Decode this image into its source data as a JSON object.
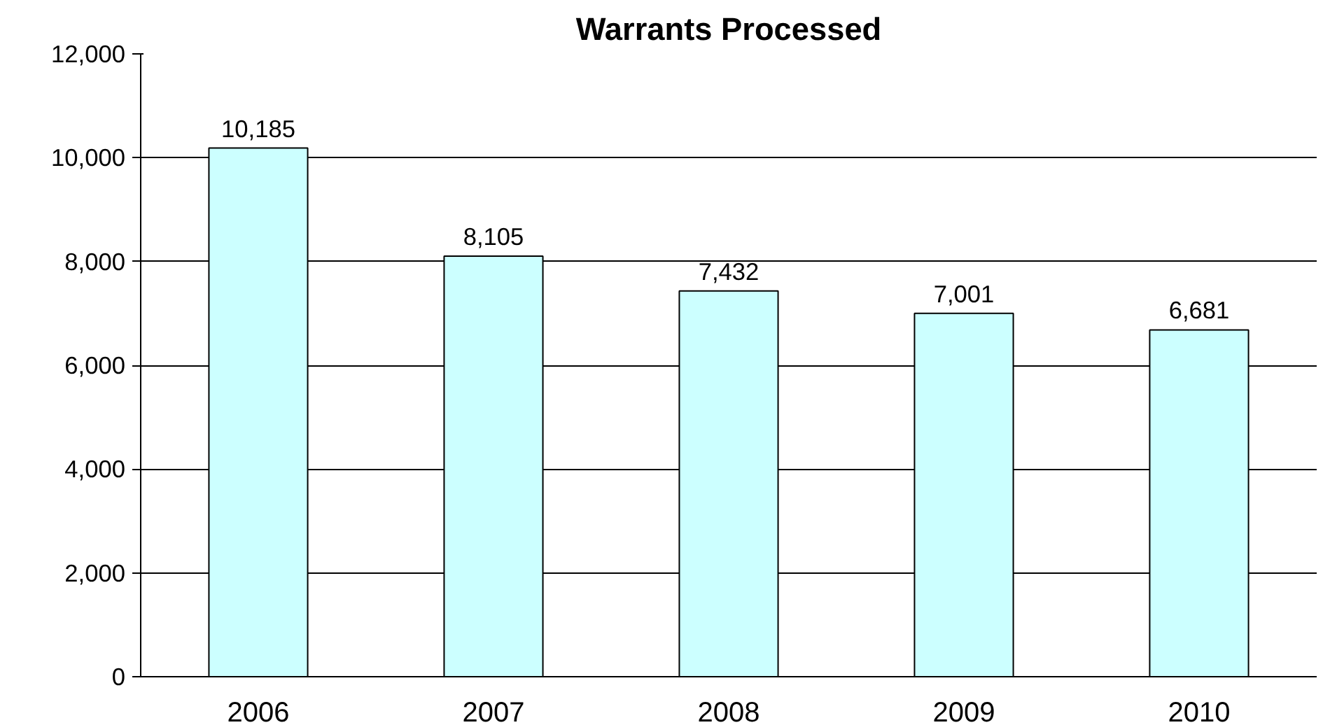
{
  "chart_data": {
    "type": "bar",
    "title": "Warrants Processed",
    "categories": [
      "2006",
      "2007",
      "2008",
      "2009",
      "2010"
    ],
    "values": [
      10185,
      8105,
      7432,
      7001,
      6681
    ],
    "color": "#ccffff",
    "ylim": [
      0,
      12000
    ],
    "yticks": [
      {
        "value": 0,
        "label": "0"
      },
      {
        "value": 2000,
        "label": "2,000"
      },
      {
        "value": 4000,
        "label": "4,000"
      },
      {
        "value": 6000,
        "label": "6,000"
      },
      {
        "value": 8000,
        "label": "8,000"
      },
      {
        "value": 10000,
        "label": "10,000"
      },
      {
        "value": 12000,
        "label": "12,000"
      }
    ],
    "value_labels": [
      "10,185",
      "8,105",
      "7,432",
      "7,001",
      "6,681"
    ],
    "grid": "y"
  }
}
